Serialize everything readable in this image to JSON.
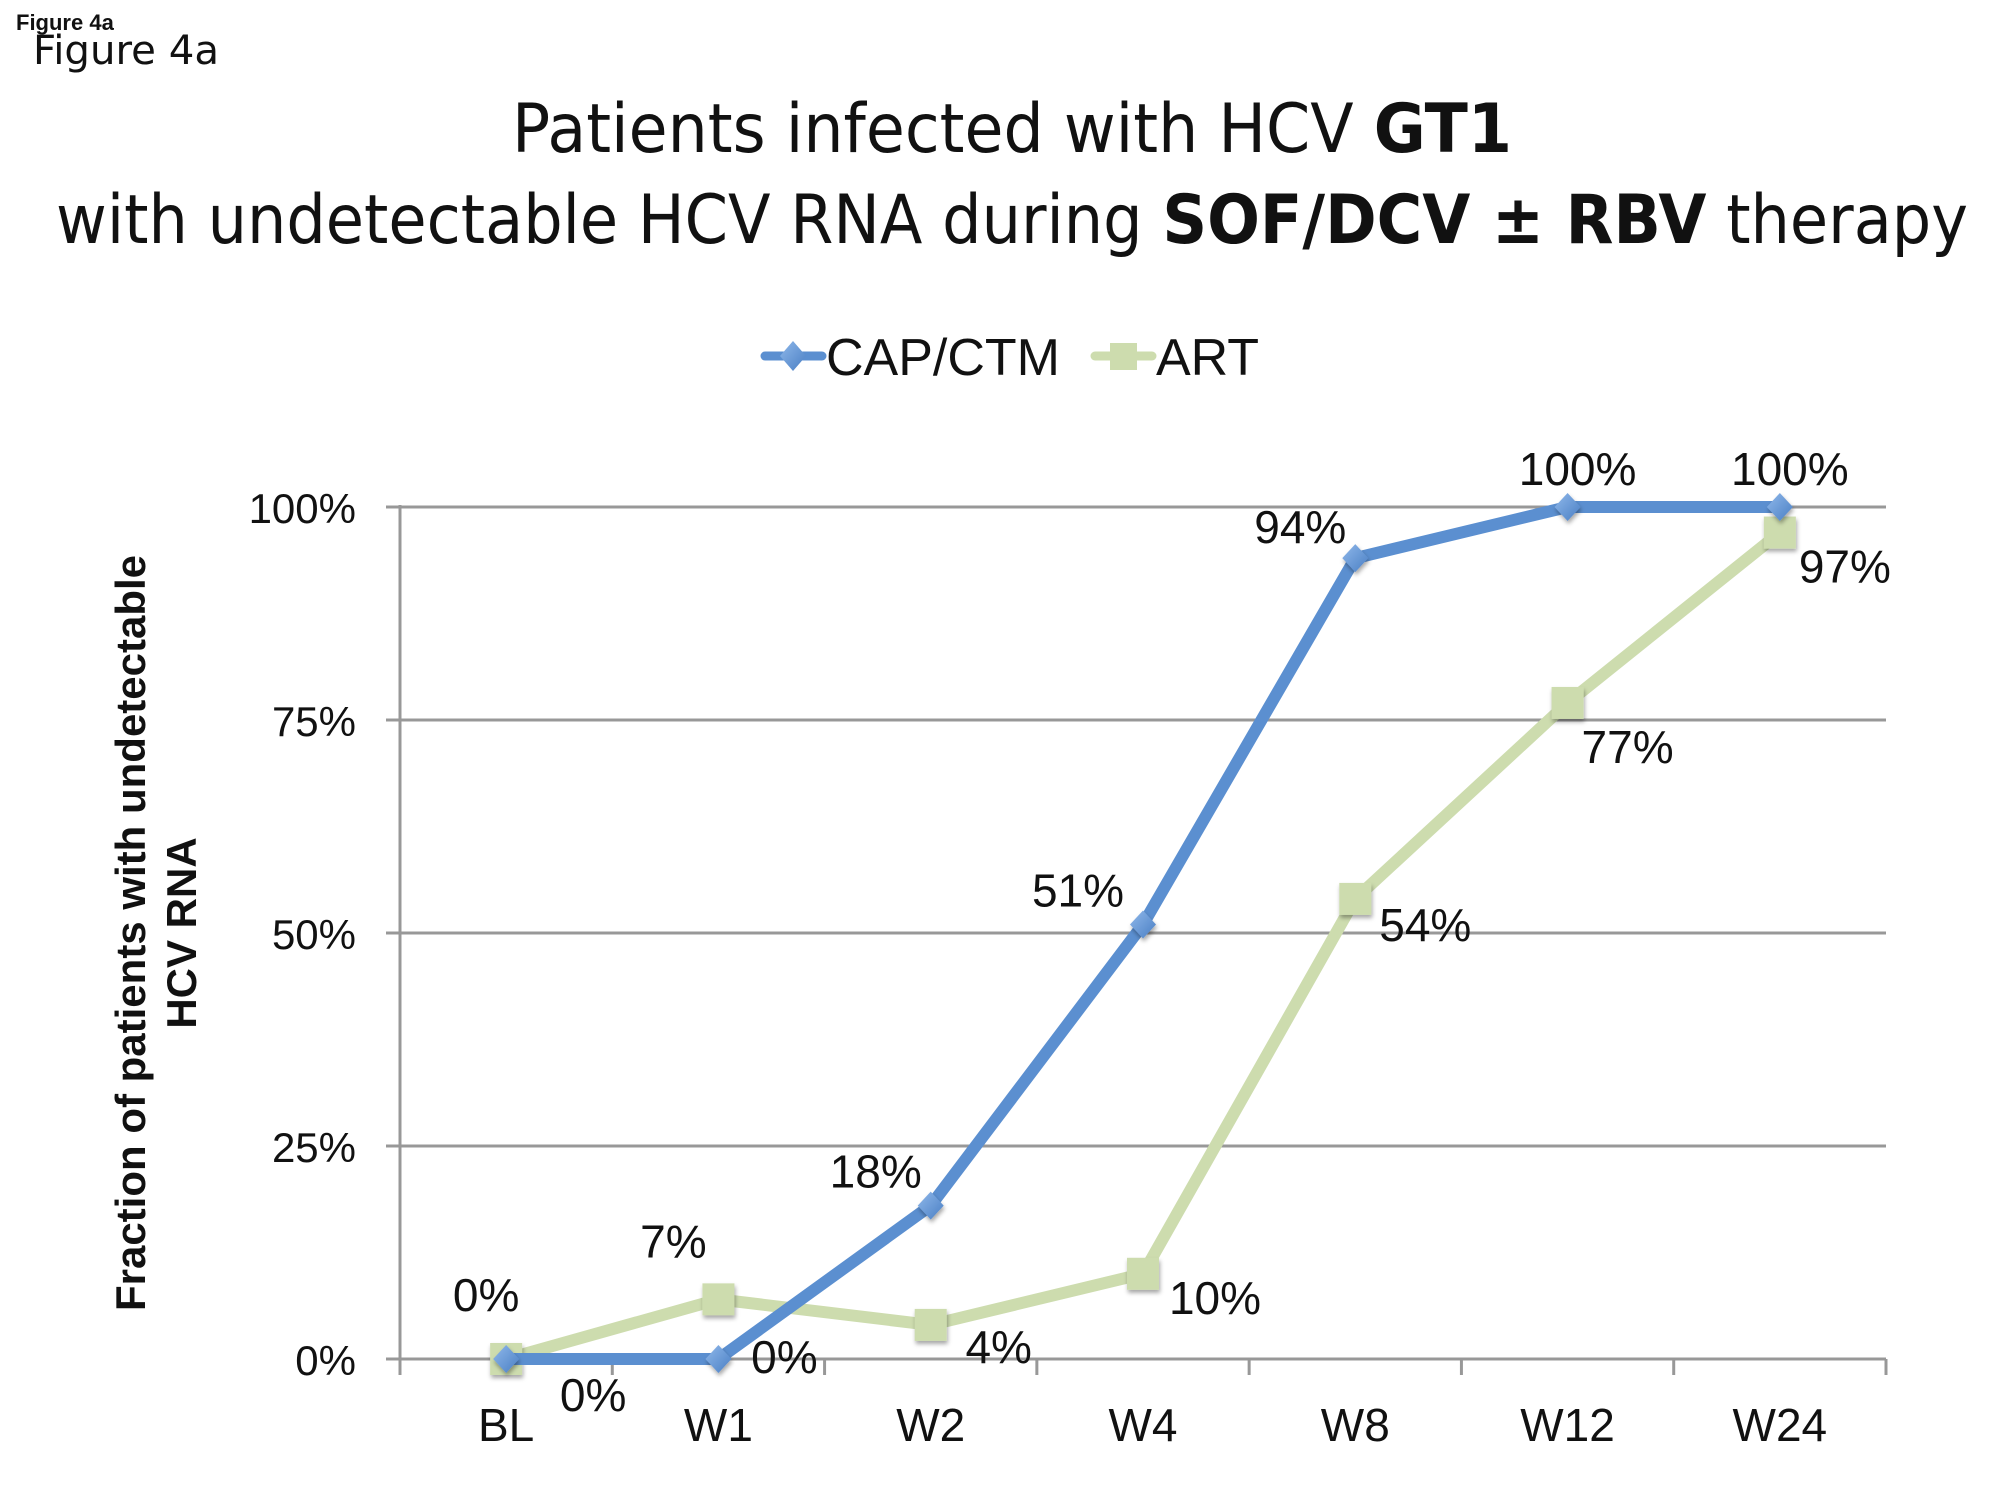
{
  "figure_label_small": "Figure 4a",
  "figure_label_large": "Figure 4a",
  "title": {
    "line1": [
      {
        "text": "Patients infected with HCV ",
        "bold": false
      },
      {
        "text": "GT1",
        "bold": true
      }
    ],
    "line2": [
      {
        "text": "with undetectable HCV RNA during ",
        "bold": false
      },
      {
        "text": "SOF/DCV ± RBV",
        "bold": true
      },
      {
        "text": " therapy",
        "bold": false
      }
    ]
  },
  "colors": {
    "cap_ctm": "#5b8fd0",
    "cap_ctm_marker": "#6a9fdc",
    "art": "#cddcae",
    "grid": "#989898",
    "text": "#111111"
  },
  "chart_data": {
    "type": "line",
    "title": "Patients infected with HCV GT1 with undetectable HCV RNA during SOF/DCV ± RBV therapy",
    "xlabel": "",
    "ylabel": "Fraction of patients with undetectable HCV RNA",
    "ylabel_lines": [
      "Fraction of patients with undetectable",
      "HCV RNA"
    ],
    "categories": [
      "BL",
      "W1",
      "W2",
      "W4",
      "W8",
      "W12",
      "W24"
    ],
    "ylim": [
      0,
      100
    ],
    "yticks": [
      0,
      25,
      50,
      75,
      100
    ],
    "ytick_labels": [
      "0%",
      "25%",
      "50%",
      "75%",
      "100%"
    ],
    "grid": true,
    "legend_position": "top-center",
    "series": [
      {
        "name": "CAP/CTM",
        "marker": "diamond",
        "values": [
          0,
          0,
          18,
          51,
          94,
          100,
          100
        ],
        "labels": [
          "0%",
          "0%",
          "18%",
          "51%",
          "94%",
          "100%",
          "100%"
        ]
      },
      {
        "name": "ART",
        "marker": "square",
        "values": [
          0,
          7,
          4,
          10,
          54,
          77,
          97
        ],
        "labels": [
          "0%",
          "7%",
          "4%",
          "10%",
          "54%",
          "77%",
          "97%"
        ]
      }
    ]
  }
}
